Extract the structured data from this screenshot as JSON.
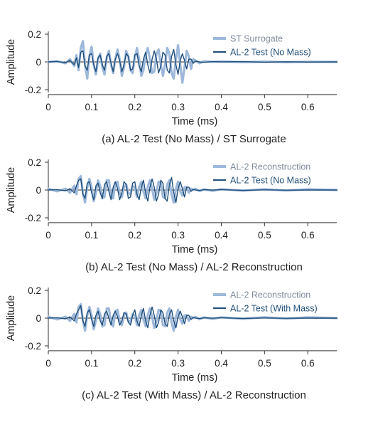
{
  "chart_data": [
    {
      "type": "line",
      "caption": "(a) AL-2 Test (No Mass) / ST Surrogate",
      "xlabel": "Time (ms)",
      "ylabel": "Amplitude",
      "xlim": [
        0,
        0.667
      ],
      "ylim": [
        -0.22,
        0.22
      ],
      "xticks": [
        0,
        0.1,
        0.2,
        0.3,
        0.4,
        0.5,
        0.6
      ],
      "xtick_labels": [
        "0",
        "0.1",
        "0.2",
        "0.3",
        "0.4",
        "0.5",
        "0.6"
      ],
      "yticks": [
        0.2,
        0,
        -0.2
      ],
      "ytick_labels": [
        "0.2",
        "0",
        "-0.2"
      ],
      "legend_position": "top-right",
      "series": [
        {
          "name": "ST Surrogate",
          "color": "#9db8da",
          "x": [
            0,
            0.02,
            0.04,
            0.05,
            0.06,
            0.065,
            0.07,
            0.075,
            0.08,
            0.085,
            0.09,
            0.095,
            0.1,
            0.105,
            0.11,
            0.115,
            0.12,
            0.125,
            0.13,
            0.135,
            0.14,
            0.145,
            0.15,
            0.155,
            0.16,
            0.165,
            0.17,
            0.175,
            0.18,
            0.185,
            0.19,
            0.195,
            0.2,
            0.205,
            0.21,
            0.215,
            0.22,
            0.225,
            0.23,
            0.235,
            0.24,
            0.245,
            0.25,
            0.255,
            0.26,
            0.265,
            0.27,
            0.275,
            0.28,
            0.285,
            0.29,
            0.295,
            0.3,
            0.305,
            0.31,
            0.315,
            0.32,
            0.325,
            0.33,
            0.335,
            0.34,
            0.35,
            0.36,
            0.38,
            0.4,
            0.45,
            0.5,
            0.55,
            0.6,
            0.667
          ],
          "y": [
            0,
            0.005,
            -0.01,
            0.02,
            -0.03,
            0.05,
            -0.06,
            0.1,
            0.15,
            -0.02,
            -0.12,
            0.04,
            0.11,
            -0.02,
            -0.09,
            0.02,
            0.06,
            -0.04,
            -0.09,
            0.03,
            0.08,
            -0.02,
            -0.08,
            0.02,
            0.09,
            0.02,
            -0.1,
            -0.04,
            0.08,
            0.04,
            -0.06,
            -0.08,
            0.03,
            0.1,
            0.02,
            -0.1,
            -0.06,
            0.05,
            0.1,
            0.02,
            -0.08,
            -0.07,
            0.06,
            0.09,
            -0.02,
            -0.1,
            -0.02,
            0.1,
            0.06,
            -0.08,
            -0.12,
            0.02,
            0.12,
            -0.02,
            -0.15,
            -0.04,
            0.08,
            0.04,
            -0.05,
            0.02,
            0.01,
            -0.01,
            0.005,
            0,
            0.003,
            -0.002,
            0.002,
            -0.002,
            0.001,
            0
          ]
        },
        {
          "name": "AL-2 Test (No Mass)",
          "color": "#1f4e79",
          "x": [
            0,
            0.02,
            0.04,
            0.05,
            0.06,
            0.065,
            0.07,
            0.075,
            0.08,
            0.085,
            0.09,
            0.095,
            0.1,
            0.105,
            0.11,
            0.115,
            0.12,
            0.125,
            0.13,
            0.135,
            0.14,
            0.145,
            0.15,
            0.155,
            0.16,
            0.165,
            0.17,
            0.175,
            0.18,
            0.185,
            0.19,
            0.195,
            0.2,
            0.205,
            0.21,
            0.215,
            0.22,
            0.225,
            0.23,
            0.235,
            0.24,
            0.245,
            0.25,
            0.255,
            0.26,
            0.265,
            0.27,
            0.275,
            0.28,
            0.285,
            0.29,
            0.295,
            0.3,
            0.305,
            0.31,
            0.315,
            0.32,
            0.325,
            0.33,
            0.335,
            0.34,
            0.35,
            0.36,
            0.38,
            0.4,
            0.45,
            0.5,
            0.55,
            0.6,
            0.667
          ],
          "y": [
            0,
            0.003,
            -0.005,
            0.01,
            -0.02,
            0.03,
            -0.04,
            0.07,
            0.08,
            -0.03,
            -0.06,
            0.05,
            0.06,
            -0.02,
            -0.07,
            0.03,
            0.05,
            -0.02,
            -0.06,
            0.04,
            0.06,
            -0.01,
            -0.07,
            0.02,
            0.06,
            0.01,
            -0.07,
            -0.02,
            0.06,
            0.04,
            -0.06,
            -0.05,
            0.05,
            0.06,
            -0.03,
            -0.07,
            0.02,
            0.07,
            -0.02,
            -0.08,
            0.02,
            0.08,
            0.02,
            -0.08,
            -0.03,
            0.07,
            0.05,
            -0.06,
            -0.08,
            0.04,
            0.09,
            -0.02,
            -0.09,
            0.01,
            0.06,
            0.01,
            -0.05,
            0.02,
            0.02,
            -0.01,
            0.005,
            0,
            -0.003,
            0.002,
            0,
            0.002,
            -0.002,
            0.001,
            -0.001,
            0
          ]
        }
      ]
    },
    {
      "type": "line",
      "caption": "(b) AL-2 Test (No Mass) / AL-2 Reconstruction",
      "xlabel": "Time (ms)",
      "ylabel": "Amplitude",
      "xlim": [
        0,
        0.667
      ],
      "ylim": [
        -0.22,
        0.22
      ],
      "xticks": [
        0,
        0.1,
        0.2,
        0.3,
        0.4,
        0.5,
        0.6
      ],
      "xtick_labels": [
        "0",
        "0.1",
        "0.2",
        "0.3",
        "0.4",
        "0.5",
        "0.6"
      ],
      "yticks": [
        0.2,
        0,
        -0.2
      ],
      "ytick_labels": [
        "0.2",
        "0",
        "-0.2"
      ],
      "legend_position": "top-right",
      "series": [
        {
          "name": "AL-2 Reconstruction",
          "color": "#9db8da",
          "x": [
            0,
            0.02,
            0.04,
            0.05,
            0.06,
            0.065,
            0.07,
            0.075,
            0.08,
            0.085,
            0.09,
            0.095,
            0.1,
            0.105,
            0.11,
            0.115,
            0.12,
            0.125,
            0.13,
            0.135,
            0.14,
            0.145,
            0.15,
            0.155,
            0.16,
            0.165,
            0.17,
            0.175,
            0.18,
            0.185,
            0.19,
            0.195,
            0.2,
            0.205,
            0.21,
            0.215,
            0.22,
            0.225,
            0.23,
            0.235,
            0.24,
            0.245,
            0.25,
            0.255,
            0.26,
            0.265,
            0.27,
            0.275,
            0.28,
            0.285,
            0.29,
            0.295,
            0.3,
            0.305,
            0.31,
            0.315,
            0.32,
            0.325,
            0.33,
            0.335,
            0.34,
            0.35,
            0.36,
            0.38,
            0.4,
            0.45,
            0.5,
            0.55,
            0.6,
            0.667
          ],
          "y": [
            0.01,
            -0.01,
            0.01,
            -0.02,
            0.03,
            -0.03,
            0.08,
            0.1,
            -0.02,
            -0.09,
            0.02,
            0.08,
            0.02,
            -0.08,
            -0.02,
            0.07,
            0.03,
            -0.06,
            -0.05,
            0.07,
            0.07,
            -0.03,
            -0.06,
            0.05,
            0.06,
            -0.02,
            -0.05,
            0.02,
            0.04,
            -0.02,
            -0.03,
            0.03,
            0.02,
            -0.05,
            0.02,
            0.06,
            -0.01,
            -0.06,
            0.02,
            0.07,
            0.01,
            -0.07,
            -0.02,
            0.06,
            0.05,
            -0.05,
            -0.06,
            0.04,
            0.07,
            -0.03,
            -0.09,
            0.01,
            0.06,
            -0.01,
            -0.04,
            0.02,
            0.02,
            -0.02,
            0.01,
            0,
            0.01,
            -0.008,
            0.005,
            -0.006,
            0.006,
            -0.005,
            0.006,
            -0.004,
            0.005,
            0
          ]
        },
        {
          "name": "AL-2 Test (No Mass)",
          "color": "#1f4e79",
          "x": [
            0,
            0.02,
            0.04,
            0.05,
            0.06,
            0.065,
            0.07,
            0.075,
            0.08,
            0.085,
            0.09,
            0.095,
            0.1,
            0.105,
            0.11,
            0.115,
            0.12,
            0.125,
            0.13,
            0.135,
            0.14,
            0.145,
            0.15,
            0.155,
            0.16,
            0.165,
            0.17,
            0.175,
            0.18,
            0.185,
            0.19,
            0.195,
            0.2,
            0.205,
            0.21,
            0.215,
            0.22,
            0.225,
            0.23,
            0.235,
            0.24,
            0.245,
            0.25,
            0.255,
            0.26,
            0.265,
            0.27,
            0.275,
            0.28,
            0.285,
            0.29,
            0.295,
            0.3,
            0.305,
            0.31,
            0.315,
            0.32,
            0.325,
            0.33,
            0.335,
            0.34,
            0.35,
            0.36,
            0.38,
            0.4,
            0.45,
            0.5,
            0.55,
            0.6,
            0.667
          ],
          "y": [
            0,
            0.003,
            -0.005,
            0.01,
            -0.02,
            0.03,
            0.07,
            0.08,
            -0.03,
            -0.06,
            0.05,
            0.06,
            -0.02,
            -0.07,
            0.03,
            0.05,
            -0.02,
            -0.06,
            0.04,
            0.06,
            -0.01,
            -0.07,
            0.02,
            0.06,
            0.01,
            -0.07,
            -0.02,
            0.06,
            0.04,
            -0.06,
            -0.05,
            0.05,
            0.06,
            -0.03,
            -0.07,
            0.02,
            0.07,
            -0.02,
            -0.08,
            0.02,
            0.08,
            0.02,
            -0.08,
            -0.03,
            0.07,
            0.05,
            -0.06,
            -0.08,
            0.04,
            0.09,
            -0.02,
            -0.09,
            0.01,
            0.06,
            0.01,
            -0.05,
            0.02,
            0.02,
            -0.01,
            0.005,
            0,
            -0.003,
            0.002,
            0,
            0.002,
            -0.002,
            0.001,
            -0.001,
            0,
            0
          ]
        }
      ]
    },
    {
      "type": "line",
      "caption": "(c) AL-2 Test (With Mass) / AL-2 Reconstruction",
      "xlabel": "Time (ms)",
      "ylabel": "Amplitude",
      "xlim": [
        0,
        0.667
      ],
      "ylim": [
        -0.22,
        0.22
      ],
      "xticks": [
        0,
        0.1,
        0.2,
        0.3,
        0.4,
        0.5,
        0.6
      ],
      "xtick_labels": [
        "0",
        "0.1",
        "0.2",
        "0.3",
        "0.4",
        "0.5",
        "0.6"
      ],
      "yticks": [
        0.2,
        0,
        -0.2
      ],
      "ytick_labels": [
        "0.2",
        "0",
        "-0.2"
      ],
      "legend_position": "top-right",
      "series": [
        {
          "name": "AL-2 Reconstruction",
          "color": "#9db8da",
          "x": [
            0,
            0.02,
            0.04,
            0.05,
            0.06,
            0.065,
            0.07,
            0.075,
            0.08,
            0.085,
            0.09,
            0.095,
            0.1,
            0.105,
            0.11,
            0.115,
            0.12,
            0.125,
            0.13,
            0.135,
            0.14,
            0.145,
            0.15,
            0.155,
            0.16,
            0.165,
            0.17,
            0.175,
            0.18,
            0.185,
            0.19,
            0.195,
            0.2,
            0.205,
            0.21,
            0.215,
            0.22,
            0.225,
            0.23,
            0.235,
            0.24,
            0.245,
            0.25,
            0.255,
            0.26,
            0.265,
            0.27,
            0.275,
            0.28,
            0.285,
            0.29,
            0.295,
            0.3,
            0.305,
            0.31,
            0.315,
            0.32,
            0.325,
            0.33,
            0.335,
            0.34,
            0.35,
            0.36,
            0.38,
            0.4,
            0.45,
            0.5,
            0.55,
            0.6,
            0.667
          ],
          "y": [
            0.01,
            -0.01,
            0.01,
            -0.02,
            0.03,
            -0.03,
            0.08,
            0.1,
            -0.02,
            -0.09,
            0.02,
            0.08,
            0.02,
            -0.08,
            -0.02,
            0.07,
            0.03,
            -0.06,
            -0.05,
            0.07,
            0.07,
            -0.03,
            -0.06,
            0.05,
            0.06,
            -0.02,
            -0.05,
            0.02,
            0.04,
            -0.02,
            -0.03,
            0.03,
            0.02,
            -0.05,
            0.02,
            0.06,
            -0.01,
            -0.06,
            0.02,
            0.07,
            0.01,
            -0.07,
            -0.02,
            0.06,
            0.05,
            -0.05,
            -0.06,
            0.04,
            0.07,
            -0.03,
            -0.09,
            0.01,
            0.06,
            -0.01,
            -0.04,
            0.02,
            0.02,
            -0.02,
            0.01,
            0,
            0.01,
            -0.008,
            0.005,
            -0.006,
            0.006,
            -0.005,
            0.006,
            -0.004,
            0.005,
            0
          ]
        },
        {
          "name": "AL-2 Test (With Mass)",
          "color": "#1f4e79",
          "x": [
            0,
            0.02,
            0.04,
            0.05,
            0.06,
            0.065,
            0.07,
            0.075,
            0.08,
            0.085,
            0.09,
            0.095,
            0.1,
            0.105,
            0.11,
            0.115,
            0.12,
            0.125,
            0.13,
            0.135,
            0.14,
            0.145,
            0.15,
            0.155,
            0.16,
            0.165,
            0.17,
            0.175,
            0.18,
            0.185,
            0.19,
            0.195,
            0.2,
            0.205,
            0.21,
            0.215,
            0.22,
            0.225,
            0.23,
            0.235,
            0.24,
            0.245,
            0.25,
            0.255,
            0.26,
            0.265,
            0.27,
            0.275,
            0.28,
            0.285,
            0.29,
            0.295,
            0.3,
            0.305,
            0.31,
            0.315,
            0.32,
            0.325,
            0.33,
            0.335,
            0.34,
            0.35,
            0.36,
            0.38,
            0.4,
            0.45,
            0.5,
            0.55,
            0.6,
            0.667
          ],
          "y": [
            0,
            0.003,
            -0.005,
            0.01,
            -0.02,
            0.03,
            0.06,
            0.09,
            -0.02,
            -0.06,
            0.04,
            0.06,
            -0.01,
            -0.06,
            0.02,
            0.05,
            -0.02,
            -0.05,
            0.03,
            0.05,
            0,
            -0.05,
            0.02,
            0.05,
            0.01,
            -0.05,
            -0.02,
            0.04,
            0.03,
            -0.03,
            -0.05,
            0.02,
            0.06,
            -0.02,
            -0.06,
            0.02,
            0.07,
            -0.02,
            -0.07,
            0.02,
            0.08,
            0.02,
            -0.07,
            -0.03,
            0.06,
            0.04,
            -0.04,
            -0.06,
            0.03,
            0.06,
            -0.02,
            -0.07,
            0.01,
            0.05,
            0.01,
            -0.04,
            0.02,
            0.02,
            -0.01,
            0.005,
            0,
            -0.003,
            0.002,
            0,
            0.002,
            -0.002,
            0.001,
            -0.001,
            0,
            0
          ]
        }
      ]
    }
  ]
}
